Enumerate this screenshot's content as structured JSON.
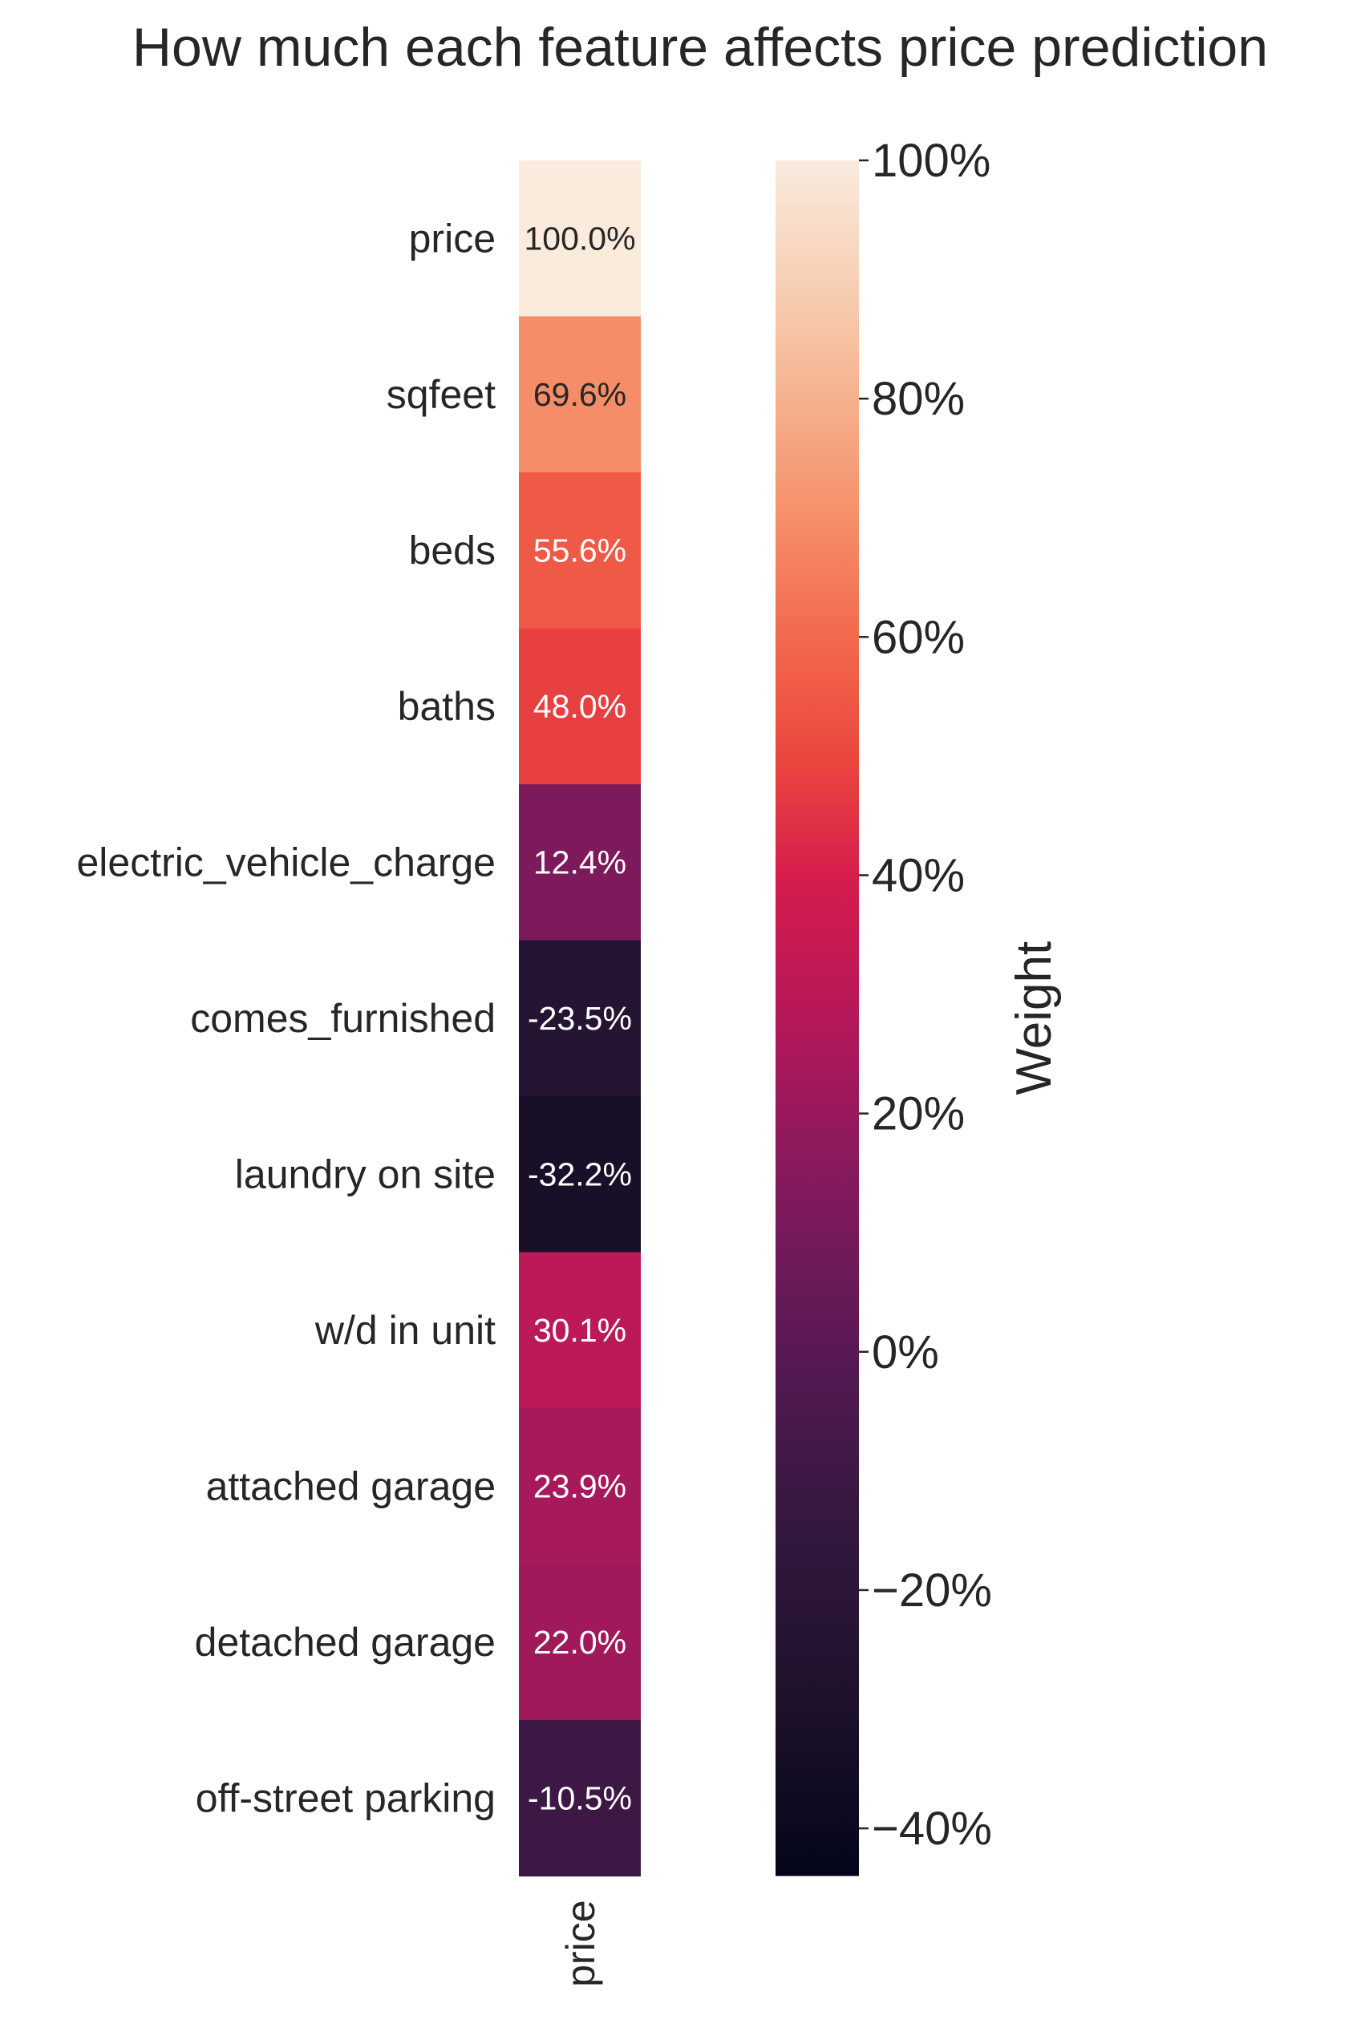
{
  "chart_data": {
    "type": "heatmap",
    "title": "How much each feature affects price prediction",
    "columns": [
      "price"
    ],
    "rows": [
      {
        "label": "price",
        "value": 100.0,
        "text": "100.0%"
      },
      {
        "label": "sqfeet",
        "value": 69.6,
        "text": "69.6%"
      },
      {
        "label": "beds",
        "value": 55.6,
        "text": "55.6%"
      },
      {
        "label": "baths",
        "value": 48.0,
        "text": "48.0%"
      },
      {
        "label": "electric_vehicle_charge",
        "value": 12.4,
        "text": "12.4%"
      },
      {
        "label": "comes_furnished",
        "value": -23.5,
        "text": "-23.5%"
      },
      {
        "label": "laundry on site",
        "value": -32.2,
        "text": "-32.2%"
      },
      {
        "label": "w/d in unit",
        "value": 30.1,
        "text": "30.1%"
      },
      {
        "label": "attached garage",
        "value": 23.9,
        "text": "23.9%"
      },
      {
        "label": "detached garage",
        "value": 22.0,
        "text": "22.0%"
      },
      {
        "label": "off-street parking",
        "value": -10.5,
        "text": "-10.5%"
      }
    ],
    "colorbar": {
      "label": "Weight",
      "vmin": -44,
      "vmax": 100,
      "ticks": [
        {
          "value": 100,
          "label": "100%"
        },
        {
          "value": 80,
          "label": "80%"
        },
        {
          "value": 60,
          "label": "60%"
        },
        {
          "value": 40,
          "label": "40%"
        },
        {
          "value": 20,
          "label": "20%"
        },
        {
          "value": 0,
          "label": "0%"
        },
        {
          "value": -20,
          "label": "−20%"
        },
        {
          "value": -40,
          "label": "−40%"
        }
      ],
      "colormap": "rocket"
    }
  }
}
